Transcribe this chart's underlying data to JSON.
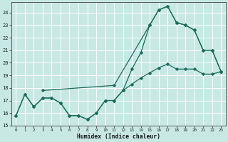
{
  "xlabel": "Humidex (Indice chaleur)",
  "bg_color": "#c8e8e4",
  "grid_color": "#ffffff",
  "line_color": "#1a6b5a",
  "ylim": [
    15,
    24.8
  ],
  "xlim": [
    -0.5,
    23.5
  ],
  "yticks": [
    15,
    16,
    17,
    18,
    19,
    20,
    21,
    22,
    23,
    24
  ],
  "xticks": [
    0,
    1,
    2,
    3,
    4,
    5,
    6,
    7,
    8,
    9,
    10,
    11,
    12,
    13,
    14,
    15,
    16,
    17,
    18,
    19,
    20,
    21,
    22,
    23
  ],
  "line1_x": [
    0,
    1,
    2,
    3,
    4,
    5,
    6,
    7,
    8,
    9,
    10,
    11,
    12,
    13,
    14,
    15,
    16,
    17,
    18,
    19,
    20,
    21,
    22,
    23
  ],
  "line1_y": [
    15.8,
    17.5,
    16.5,
    17.2,
    17.2,
    16.8,
    15.8,
    15.8,
    15.5,
    16.0,
    17.0,
    17.0,
    17.8,
    19.5,
    20.8,
    23.0,
    24.2,
    24.5,
    23.2,
    23.0,
    22.6,
    21.0,
    21.0,
    19.3
  ],
  "line2_x": [
    0,
    1,
    2,
    3,
    4,
    5,
    6,
    7,
    8,
    9,
    10,
    11,
    12,
    13,
    14,
    15,
    16,
    17,
    18,
    19,
    20,
    21,
    22,
    23
  ],
  "line2_y": [
    15.8,
    17.5,
    16.5,
    17.2,
    17.2,
    16.8,
    15.8,
    15.8,
    15.5,
    16.0,
    17.0,
    17.0,
    17.8,
    18.3,
    18.8,
    19.2,
    19.6,
    19.9,
    19.5,
    19.5,
    19.5,
    19.1,
    19.1,
    19.3
  ],
  "line3_x": [
    3,
    11,
    15,
    16,
    17,
    18,
    19,
    20,
    21,
    22,
    23
  ],
  "line3_y": [
    17.8,
    18.2,
    23.0,
    24.2,
    24.5,
    23.2,
    23.0,
    22.6,
    21.0,
    21.0,
    19.3
  ]
}
